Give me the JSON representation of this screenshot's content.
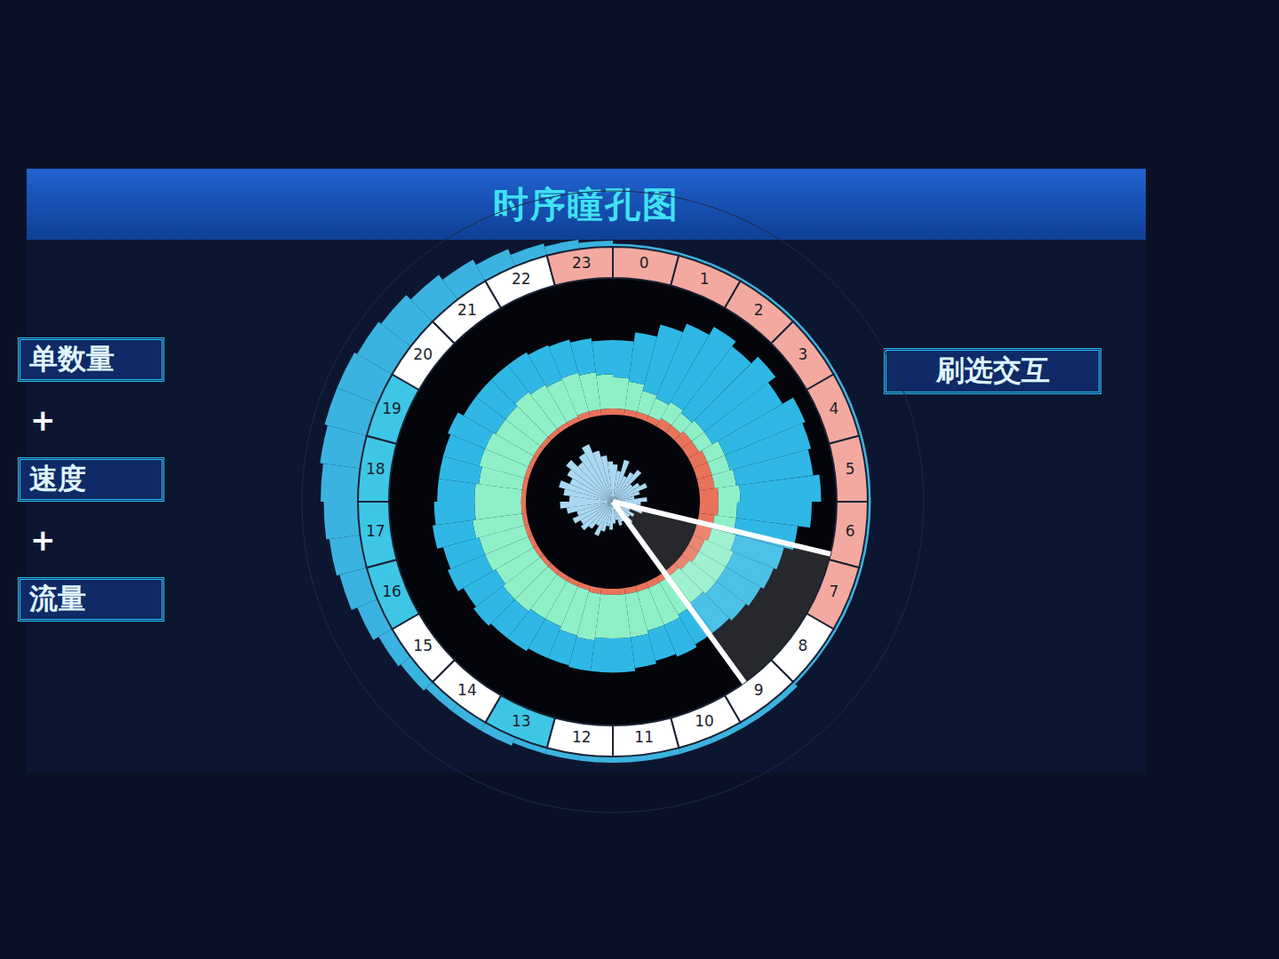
{
  "chart_data": {
    "type": "barpolar",
    "title": "时序瞳孔图",
    "panels": [
      "单数量",
      "速度",
      "流量"
    ],
    "joiner": "+",
    "button": "刷选交互",
    "rlim": [
      0,
      100
    ],
    "rticks": [
      24,
      48,
      68
    ],
    "grid": true,
    "tick_labels": false,
    "stacked": true,
    "brush": [
      6.9,
      9.6
    ],
    "hour_ring": {
      "inner": 72,
      "outer": 82,
      "labels": [
        0,
        1,
        2,
        3,
        4,
        5,
        6,
        7,
        8,
        9,
        10,
        11,
        12,
        13,
        14,
        15,
        16,
        17,
        18,
        19,
        20,
        21,
        22,
        23
      ],
      "colors": [
        "#f4a9a0",
        "#f4a9a0",
        "#f4a9a0",
        "#f4a9a0",
        "#f4a9a0",
        "#f4a9a0",
        "#f4a9a0",
        "#f4a9a0",
        "#ffffff",
        "#ffffff",
        "#ffffff",
        "#ffffff",
        "#ffffff",
        "#3ec6e6",
        "#ffffff",
        "#ffffff",
        "#3ec6e6",
        "#3ec6e6",
        "#3ec6e6",
        "#3ec6e6",
        "#ffffff",
        "#ffffff",
        "#ffffff",
        "#f4a9a0"
      ]
    },
    "series": [
      {
        "color": "#a9d8f2",
        "base": 0,
        "values": [
          12,
          10,
          14,
          9,
          11,
          13,
          8,
          10,
          12,
          9,
          7,
          11,
          9,
          8,
          10,
          6,
          8,
          7,
          9,
          6,
          7,
          8,
          6,
          7,
          9,
          8,
          10,
          12,
          9,
          11,
          13,
          12,
          14,
          12,
          15,
          17,
          14,
          16,
          18,
          15,
          17,
          19,
          16,
          18,
          20,
          17,
          15,
          13
        ]
      },
      {
        "color": "#e8735a",
        "base": 28,
        "values": [
          2,
          2,
          2,
          2,
          3,
          3,
          4,
          4,
          5,
          5,
          5,
          6,
          6,
          5,
          5,
          4,
          4,
          3,
          2,
          2,
          2,
          2,
          2,
          2,
          2,
          2,
          1.5,
          1.5,
          1.5,
          1.5,
          1.5,
          1.5,
          1.5,
          1.5,
          1.5,
          1.5,
          1.5,
          1.5,
          1.5,
          1.5,
          1.5,
          1.5,
          1.5,
          1.5,
          1.5,
          2,
          2,
          2
        ]
      },
      {
        "color": "#8ff0c8",
        "values": [
          10,
          9,
          7,
          6,
          6,
          5,
          5,
          5,
          6,
          6,
          7,
          7,
          6,
          7,
          8,
          10,
          10,
          11,
          11,
          12,
          13,
          13,
          14,
          14,
          14,
          15,
          15,
          14,
          14,
          15,
          15,
          14,
          15,
          15,
          16,
          15,
          15,
          14,
          15,
          15,
          14,
          14,
          15,
          14,
          13,
          13,
          12,
          11
        ]
      },
      {
        "color": "#2fb8e6",
        "values": [
          12,
          16,
          22,
          26,
          28,
          27,
          29,
          26,
          28,
          27,
          25,
          26,
          24,
          20,
          16,
          14,
          13,
          12,
          12,
          11,
          11,
          10,
          10,
          11,
          11,
          10,
          10,
          11,
          12,
          11,
          12,
          12,
          13,
          12,
          13,
          13,
          12,
          13,
          12,
          13,
          12,
          12,
          11,
          12,
          12,
          11,
          11,
          11
        ]
      },
      {
        "color": "#3bb3e0",
        "base": 82,
        "values": [
          1,
          1,
          1,
          1,
          1,
          1,
          1,
          1,
          1,
          1,
          1,
          1,
          1,
          1,
          1,
          1,
          1,
          1,
          2,
          2,
          2,
          2,
          2,
          2,
          2,
          2,
          2,
          3,
          3,
          3,
          4,
          5,
          7,
          9,
          10,
          11,
          12,
          13,
          14,
          14,
          13,
          12,
          10,
          8,
          6,
          4,
          3,
          2
        ]
      }
    ]
  }
}
